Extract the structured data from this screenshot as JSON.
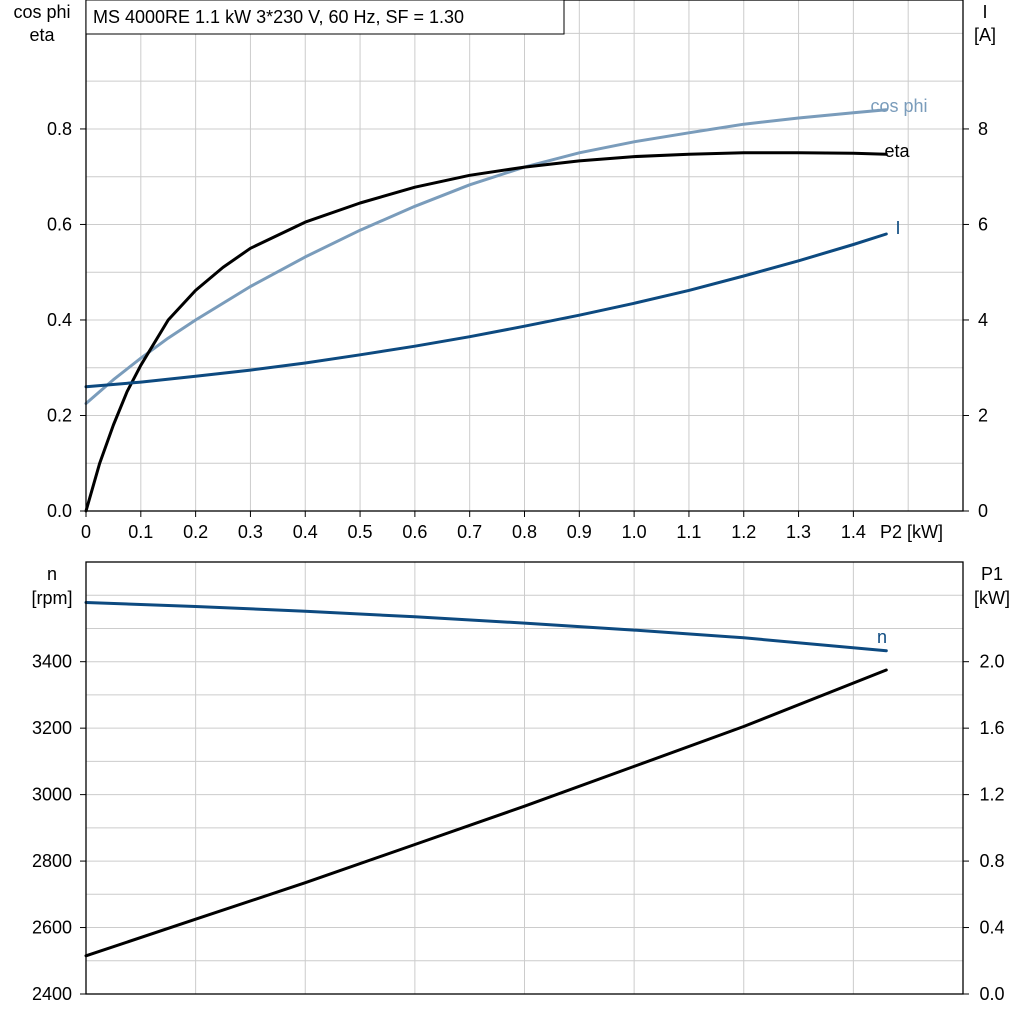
{
  "title": "MS 4000RE   1.1 kW   3*230 V, 60 Hz, SF = 1.30",
  "colors": {
    "cos_phi": "#7a9cbb",
    "eta": "#000000",
    "current": "#0d4a80",
    "speed": "#0d4a80",
    "p1": "#000000"
  },
  "chart_data": [
    {
      "type": "line",
      "xlabel": "P2 [kW]",
      "xlim": [
        0,
        1.6
      ],
      "x_ticks": [
        "0",
        "0.1",
        "0.2",
        "0.3",
        "0.4",
        "0.5",
        "0.6",
        "0.7",
        "0.8",
        "0.9",
        "1.0",
        "1.1",
        "1.2",
        "1.3",
        "1.4"
      ],
      "ylabel_left_1": "cos phi",
      "ylabel_left_2": "eta",
      "ylim_left": [
        0,
        1.07
      ],
      "y_ticks_left": [
        "0.0",
        "0.2",
        "0.4",
        "0.6",
        "0.8"
      ],
      "ylabel_right_1": "I",
      "ylabel_right_2": "[A]",
      "ylim_right": [
        0,
        10.7
      ],
      "y_ticks_right": [
        "0",
        "2",
        "4",
        "6",
        "8"
      ],
      "series": [
        {
          "name": "cos phi",
          "axis": "left",
          "color": "#7a9cbb",
          "x": [
            0,
            0.05,
            0.1,
            0.15,
            0.2,
            0.3,
            0.4,
            0.5,
            0.6,
            0.7,
            0.8,
            0.9,
            1.0,
            1.1,
            1.2,
            1.3,
            1.4,
            1.46
          ],
          "y": [
            0.225,
            0.275,
            0.32,
            0.362,
            0.4,
            0.47,
            0.532,
            0.588,
            0.638,
            0.683,
            0.72,
            0.75,
            0.773,
            0.792,
            0.81,
            0.823,
            0.834,
            0.84
          ]
        },
        {
          "name": "eta",
          "axis": "left",
          "color": "#000000",
          "x": [
            0,
            0.025,
            0.05,
            0.075,
            0.1,
            0.15,
            0.2,
            0.25,
            0.3,
            0.4,
            0.5,
            0.6,
            0.7,
            0.8,
            0.9,
            1.0,
            1.1,
            1.2,
            1.3,
            1.4,
            1.46
          ],
          "y": [
            0,
            0.1,
            0.18,
            0.25,
            0.305,
            0.4,
            0.462,
            0.51,
            0.55,
            0.605,
            0.645,
            0.678,
            0.703,
            0.72,
            0.733,
            0.742,
            0.747,
            0.75,
            0.75,
            0.749,
            0.747
          ]
        },
        {
          "name": "I",
          "axis": "right",
          "color": "#0d4a80",
          "x": [
            0,
            0.1,
            0.2,
            0.3,
            0.4,
            0.5,
            0.6,
            0.7,
            0.8,
            0.9,
            1.0,
            1.1,
            1.2,
            1.3,
            1.4,
            1.46
          ],
          "y": [
            2.6,
            2.7,
            2.82,
            2.95,
            3.1,
            3.27,
            3.45,
            3.65,
            3.87,
            4.1,
            4.35,
            4.62,
            4.92,
            5.24,
            5.58,
            5.8
          ]
        }
      ]
    },
    {
      "type": "line",
      "xlim": [
        0,
        1.6
      ],
      "ylabel_left_1": "n",
      "ylabel_left_2": "[rpm]",
      "ylim_left": [
        2400,
        3700
      ],
      "y_ticks_left": [
        "2400",
        "2600",
        "2800",
        "3000",
        "3200",
        "3400"
      ],
      "ylabel_right_1": "P1",
      "ylabel_right_2": "[kW]",
      "ylim_right": [
        0,
        2.6
      ],
      "y_ticks_right": [
        "0.0",
        "0.4",
        "0.8",
        "1.2",
        "1.6",
        "2.0"
      ],
      "series": [
        {
          "name": "n",
          "axis": "left",
          "color": "#0d4a80",
          "x": [
            0,
            0.2,
            0.4,
            0.6,
            0.8,
            1.0,
            1.2,
            1.46
          ],
          "y": [
            3578,
            3566,
            3552,
            3535,
            3516,
            3495,
            3472,
            3433
          ]
        },
        {
          "name": "",
          "axis": "right",
          "color": "#000000",
          "x": [
            0,
            0.2,
            0.4,
            0.6,
            0.8,
            1.0,
            1.2,
            1.46
          ],
          "y": [
            0.23,
            0.45,
            0.67,
            0.9,
            1.13,
            1.37,
            1.61,
            1.95
          ]
        }
      ]
    }
  ]
}
